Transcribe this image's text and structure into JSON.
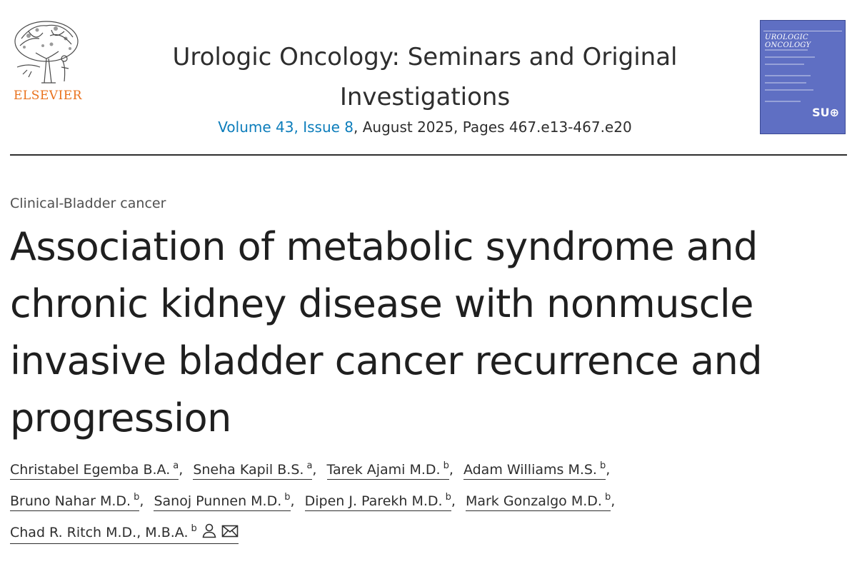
{
  "publisher": {
    "name": "ELSEVIER"
  },
  "journal": {
    "title": "Urologic Oncology: Seminars and Original Investigations",
    "volume_issue": "Volume 43, Issue 8",
    "issue_details": ", August 2025, Pages 467.e13-467.e20",
    "cover": {
      "title": "UROLOGIC ONCOLOGY",
      "badge": "SU⊕",
      "color": "#5f6fc3"
    }
  },
  "article": {
    "type": "Clinical-Bladder cancer",
    "title": "Association of metabolic syndrome and chronic kidney disease with nonmuscle invasive bladder cancer recurrence and progression"
  },
  "authors": [
    {
      "name": "Christabel Egemba B.A.",
      "affiliation": "a",
      "separator": ","
    },
    {
      "name": "Sneha Kapil B.S.",
      "affiliation": "a",
      "separator": ","
    },
    {
      "name": "Tarek Ajami M.D.",
      "affiliation": "b",
      "separator": ","
    },
    {
      "name": "Adam Williams M.S.",
      "affiliation": "b",
      "separator": ","
    },
    {
      "name": "Bruno Nahar M.D.",
      "affiliation": "b",
      "separator": ","
    },
    {
      "name": "Sanoj Punnen M.D.",
      "affiliation": "b",
      "separator": ","
    },
    {
      "name": "Dipen J. Parekh M.D.",
      "affiliation": "b",
      "separator": ","
    },
    {
      "name": "Mark Gonzalgo M.D.",
      "affiliation": "b",
      "separator": ","
    },
    {
      "name": "Chad R. Ritch M.D., M.B.A.",
      "affiliation": "b",
      "separator": ""
    }
  ],
  "icons": {
    "corresponding_author": "person-icon",
    "email": "envelope-icon"
  },
  "colors": {
    "link": "#0c7dbb",
    "publisher_orange": "#e9711c",
    "text": "#2e2e2e"
  }
}
